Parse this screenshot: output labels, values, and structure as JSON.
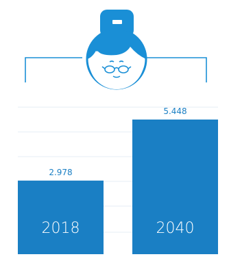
{
  "colors": {
    "bar": "#1a7fc4",
    "label": "#1a7fc4",
    "bar_text": "#ffffff",
    "grid": "#e6eef5",
    "icon_primary": "#1a8fd6",
    "icon_skin": "#ffffff",
    "icon_line": "#1a8fd6"
  },
  "icon": {
    "name": "grandmother-icon"
  },
  "chart_data": {
    "type": "bar",
    "title": "",
    "xlabel": "",
    "ylabel": "",
    "categories": [
      "2018",
      "2040"
    ],
    "values": [
      2.978,
      5.448
    ],
    "value_labels": [
      "2.978",
      "5.448"
    ],
    "ylim": [
      0,
      5.448
    ],
    "grid": true,
    "legend": "none"
  }
}
